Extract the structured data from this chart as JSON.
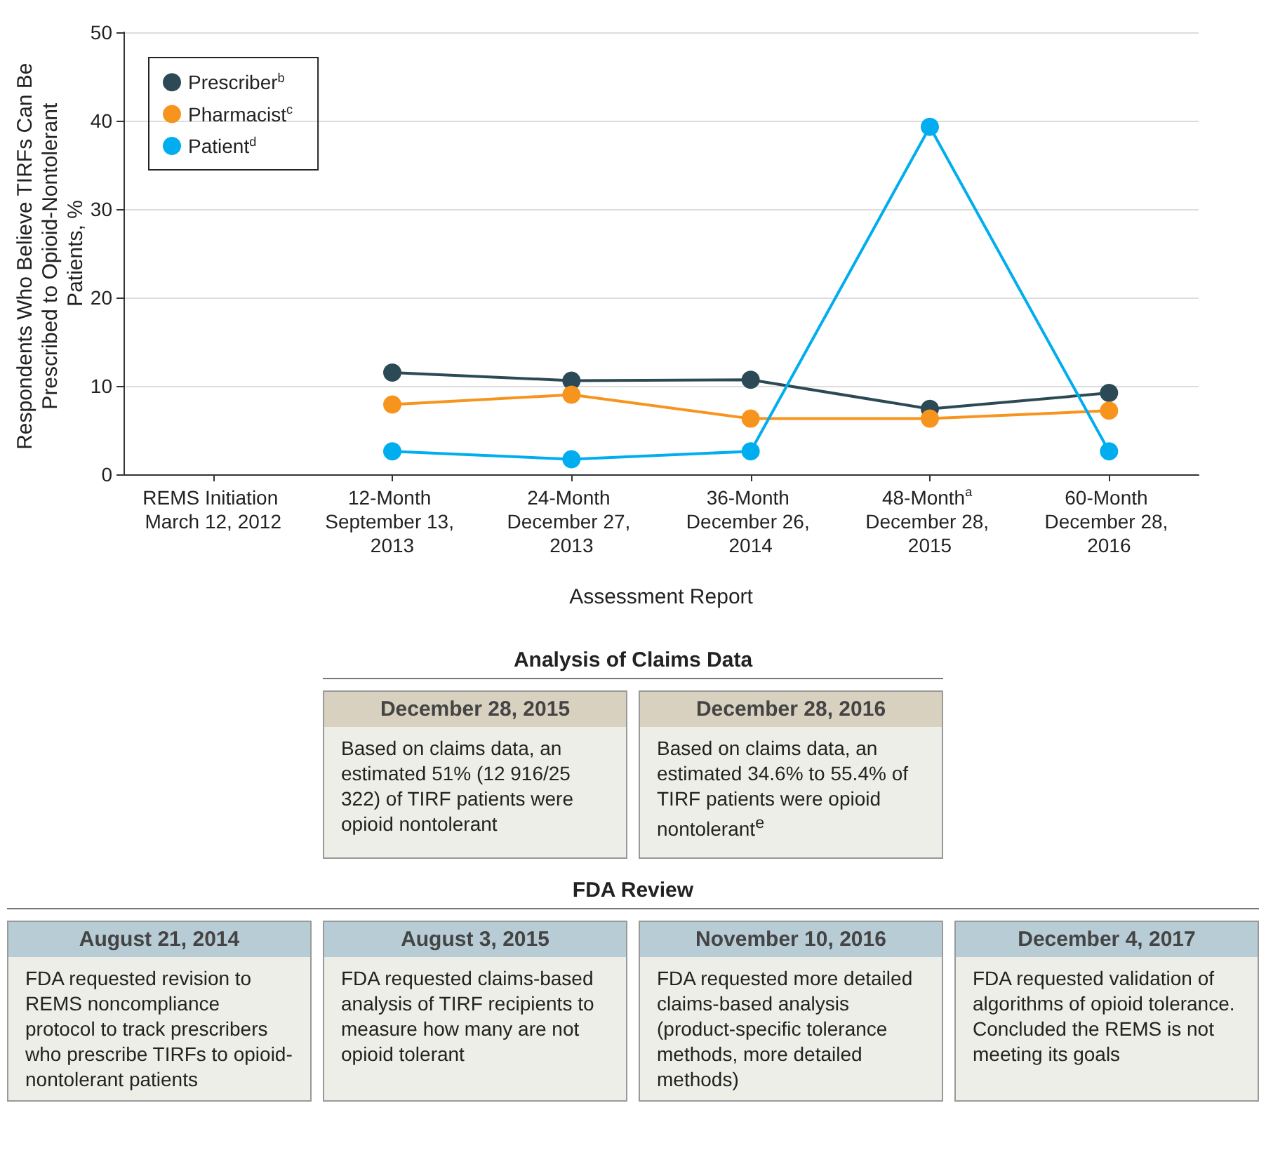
{
  "chart_data": [
    {
      "type": "line",
      "xlabel": "Assessment Report",
      "ylabel": "Respondents Who Believe TIRFs Can Be Prescribed to Opioid-Nontolerant Patients, %",
      "categories": [
        "REMS Initiation March 12, 2012",
        "12-Month September 13, 2013",
        "24-Month December 27, 2013",
        "36-Month December 26, 2014",
        "48-Month$^{a}$ December 28, 2015",
        "60-Month December 28, 2016"
      ],
      "series": [
        {
          "name": "Prescriber$^{b}$",
          "color": "#2b4a55",
          "values": [
            null,
            11.5,
            10.6,
            10.7,
            7.4,
            9.2
          ]
        },
        {
          "name": "Pharmacist$^{c}$",
          "color": "#f7941d",
          "values": [
            null,
            7.9,
            9.0,
            6.3,
            6.3,
            7.2
          ]
        },
        {
          "name": "Patient$^{d}$",
          "color": "#00aeef",
          "values": [
            null,
            2.6,
            1.7,
            2.6,
            39.3,
            2.6
          ]
        }
      ],
      "ylim": [
        0,
        50
      ],
      "yticks": [
        0,
        10,
        20,
        30,
        40,
        50
      ],
      "grid": "y",
      "legend": "top left",
      "marker": "circle",
      "line_style": "solid"
    },
    {
      "type": "other",
      "title": "Analysis of Claims Data",
      "color": "#d8d1c0",
      "categories": [
        "December 28, 2015",
        "December 28, 2016"
      ],
      "annotations": [
        "Based on claims data, an estimated 51% (12 916/25 322) of TIRF patients were opioid nontolerant",
        "Based on claims data, an estimated 34.6% to 55.4% of TIRF patients were opioid nontolerant$^{e}$"
      ]
    },
    {
      "type": "other",
      "title": "FDA Review",
      "color": "#b8ccd6",
      "categories": [
        "August 21, 2014",
        "August 3, 2015",
        "November 10, 2016",
        "December 4, 2017"
      ],
      "annotations": [
        "FDA requested revision to REMS noncompliance protocol to track prescribers who prescribe TIRFs to opioid-nontolerant patients",
        "FDA requested claims-based analysis of TIRF recipients to measure how many are not opioid tolerant",
        "FDA requested more detailed claims-based analysis (product-specific tolerance methods, more detailed methods)",
        "FDA requested validation of algorithms of opioid tolerance. Concluded the REMS is not meeting its goals"
      ]
    }
  ]
}
